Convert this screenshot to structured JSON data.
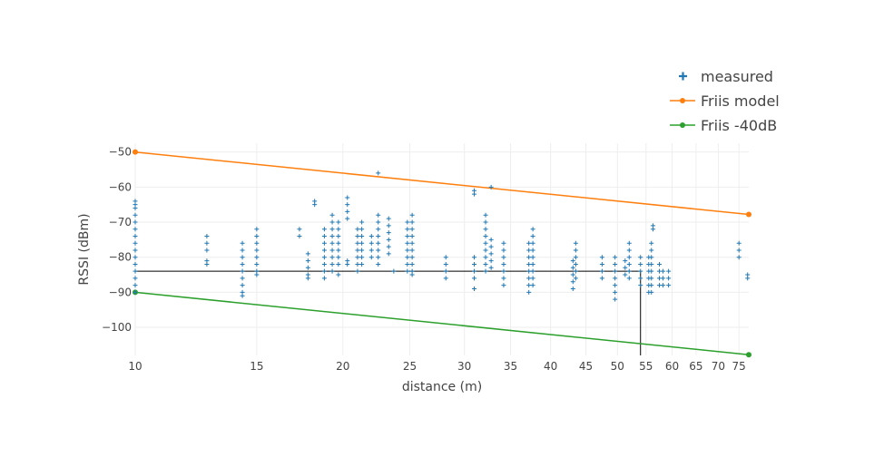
{
  "chart_data": {
    "type": "scatter",
    "xlabel": "distance (m)",
    "ylabel": "RSSI (dBm)",
    "x_scale": "log",
    "xlim": [
      10,
      77.5
    ],
    "ylim": [
      -108,
      -47.5
    ],
    "x_ticks": [
      10,
      15,
      20,
      25,
      30,
      35,
      40,
      45,
      50,
      55,
      60,
      65,
      70,
      75
    ],
    "y_ticks": [
      -50,
      -60,
      -70,
      -80,
      -90,
      -100
    ],
    "grid": true,
    "legend_position": "top-right",
    "legend": [
      {
        "label": "measured",
        "marker": "cross",
        "color": "#1f77b4"
      },
      {
        "label": "Friis model",
        "marker": "line-dot",
        "color": "#ff7f0e"
      },
      {
        "label": "Friis -40dB",
        "marker": "line-dot",
        "color": "#2ca02c"
      }
    ],
    "series": [
      {
        "name": "Friis model",
        "color": "#ff7f0e",
        "points": [
          [
            10,
            -50
          ],
          [
            77.5,
            -67.8
          ]
        ]
      },
      {
        "name": "Friis -40dB",
        "color": "#2ca02c",
        "points": [
          [
            10,
            -90
          ],
          [
            77.5,
            -107.8
          ]
        ]
      },
      {
        "name": "measured",
        "color": "#1f77b4",
        "columns": [
          {
            "x": 10,
            "y": [
              -64,
              -65,
              -66,
              -68,
              -70,
              -72,
              -74,
              -76,
              -78,
              -80,
              -82,
              -84,
              -86,
              -88,
              -90
            ]
          },
          {
            "x": 12.7,
            "y": [
              -74,
              -76,
              -78,
              -81,
              -82
            ]
          },
          {
            "x": 14.3,
            "y": [
              -76,
              -78,
              -80,
              -82,
              -84,
              -86,
              -88,
              -90,
              -91
            ]
          },
          {
            "x": 15,
            "y": [
              -72,
              -74,
              -76,
              -78,
              -80,
              -82,
              -84,
              -85
            ]
          },
          {
            "x": 17.3,
            "y": [
              -72,
              -74
            ]
          },
          {
            "x": 17.8,
            "y": [
              -79,
              -81,
              -83,
              -85,
              -86
            ]
          },
          {
            "x": 18.2,
            "y": [
              -64,
              -65
            ]
          },
          {
            "x": 18.8,
            "y": [
              -72,
              -74,
              -76,
              -78,
              -80,
              -82,
              -84,
              -86
            ]
          },
          {
            "x": 19.3,
            "y": [
              -68,
              -70,
              -72,
              -74,
              -76,
              -78,
              -80,
              -82,
              -84
            ]
          },
          {
            "x": 19.7,
            "y": [
              -70,
              -72,
              -74,
              -76,
              -78,
              -80,
              -82,
              -85
            ]
          },
          {
            "x": 20.3,
            "y": [
              -63,
              -65,
              -67,
              -69,
              -81,
              -82
            ]
          },
          {
            "x": 21,
            "y": [
              -72,
              -74,
              -76,
              -78,
              -80,
              -82,
              -84
            ]
          },
          {
            "x": 21.3,
            "y": [
              -70,
              -72,
              -74,
              -76,
              -78,
              -80,
              -82
            ]
          },
          {
            "x": 22,
            "y": [
              -74,
              -76,
              -78,
              -80
            ]
          },
          {
            "x": 22.5,
            "y": [
              -56,
              -68,
              -70,
              -72,
              -74,
              -76,
              -78,
              -80,
              -82
            ]
          },
          {
            "x": 23.3,
            "y": [
              -69,
              -71,
              -73,
              -75,
              -77,
              -79
            ]
          },
          {
            "x": 23.7,
            "y": [
              -84
            ]
          },
          {
            "x": 24.8,
            "y": [
              -70,
              -72,
              -74,
              -76,
              -78,
              -80,
              -82,
              -84
            ]
          },
          {
            "x": 25.2,
            "y": [
              -68,
              -70,
              -72,
              -74,
              -76,
              -78,
              -80,
              -82,
              -84,
              -85
            ]
          },
          {
            "x": 28.2,
            "y": [
              -80,
              -82,
              -84,
              -86
            ]
          },
          {
            "x": 31,
            "y": [
              -61,
              -62,
              -80,
              -82,
              -84,
              -86,
              -89
            ]
          },
          {
            "x": 32.2,
            "y": [
              -68,
              -70,
              -72,
              -74,
              -76,
              -78,
              -80,
              -82,
              -84
            ]
          },
          {
            "x": 32.8,
            "y": [
              -60,
              -75,
              -77,
              -79,
              -81,
              -83
            ]
          },
          {
            "x": 34.2,
            "y": [
              -76,
              -78,
              -80,
              -82,
              -84,
              -86,
              -88
            ]
          },
          {
            "x": 37.2,
            "y": [
              -76,
              -78,
              -80,
              -82,
              -84,
              -86,
              -88,
              -90
            ]
          },
          {
            "x": 37.7,
            "y": [
              -72,
              -74,
              -76,
              -78,
              -80,
              -82,
              -84,
              -86,
              -88
            ]
          },
          {
            "x": 43.1,
            "y": [
              -81,
              -83,
              -85,
              -87,
              -89
            ]
          },
          {
            "x": 43.5,
            "y": [
              -76,
              -78,
              -80,
              -82,
              -84,
              -86
            ]
          },
          {
            "x": 47.5,
            "y": [
              -80,
              -82,
              -84,
              -86
            ]
          },
          {
            "x": 49.6,
            "y": [
              -80,
              -82,
              -84,
              -86,
              -88,
              -90,
              -92
            ]
          },
          {
            "x": 51.3,
            "y": [
              -81,
              -83,
              -85
            ]
          },
          {
            "x": 52,
            "y": [
              -76,
              -78,
              -80,
              -82,
              -84,
              -86
            ]
          },
          {
            "x": 54,
            "y": [
              -80,
              -82,
              -84,
              -86,
              -88
            ]
          },
          {
            "x": 55.5,
            "y": [
              -80,
              -82,
              -84,
              -86,
              -88,
              -90
            ]
          },
          {
            "x": 56,
            "y": [
              -76,
              -78,
              -80,
              -82,
              -84,
              -86,
              -88,
              -90
            ]
          },
          {
            "x": 56.3,
            "y": [
              -71,
              -72
            ]
          },
          {
            "x": 57.5,
            "y": [
              -82,
              -84,
              -86,
              -88
            ]
          },
          {
            "x": 58.2,
            "y": [
              -84,
              -86,
              -88
            ]
          },
          {
            "x": 59.3,
            "y": [
              -84,
              -86,
              -88
            ]
          },
          {
            "x": 75,
            "y": [
              -76,
              -78,
              -80
            ]
          },
          {
            "x": 77.2,
            "y": [
              -85,
              -86
            ]
          }
        ]
      }
    ],
    "reference_lines": [
      {
        "from": [
          10,
          -84
        ],
        "to": [
          54,
          -84
        ],
        "color": "#000000"
      },
      {
        "from": [
          54,
          -84
        ],
        "to": [
          54,
          -108
        ],
        "color": "#000000"
      }
    ]
  }
}
